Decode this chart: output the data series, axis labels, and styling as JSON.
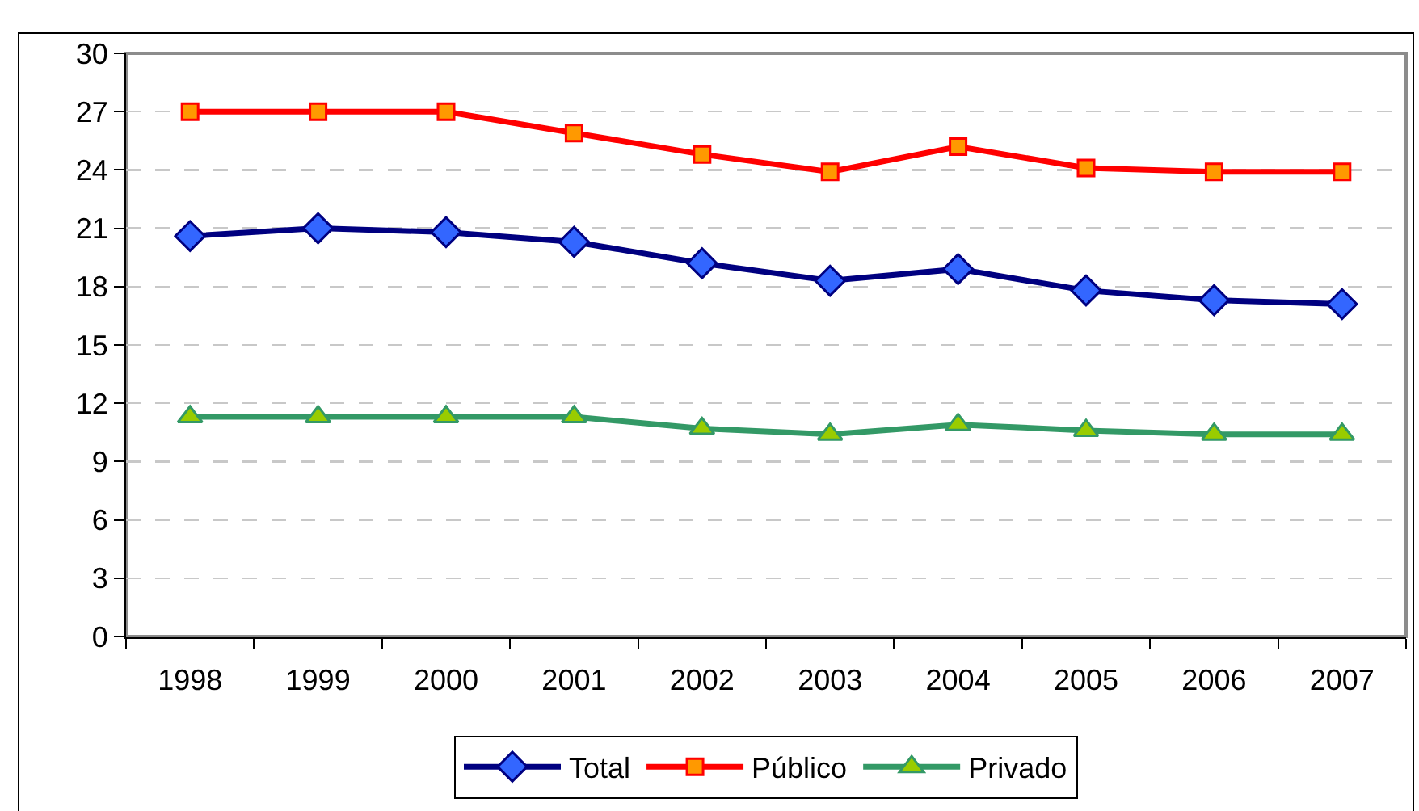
{
  "chart_data": {
    "type": "line",
    "categories": [
      "1998",
      "1999",
      "2000",
      "2001",
      "2002",
      "2003",
      "2004",
      "2005",
      "2006",
      "2007"
    ],
    "series": [
      {
        "name": "Total",
        "color": "#000080",
        "marker": "diamond",
        "colors": [
          "#3366ff",
          "#3366ff",
          "#3366ff",
          "#3366ff",
          "#3366ff",
          "#3366ff",
          "#3366ff",
          "#3366ff",
          "#3366ff",
          "#3366ff"
        ],
        "values": [
          20.6,
          21.0,
          20.8,
          20.3,
          19.2,
          18.3,
          18.9,
          17.8,
          17.3,
          17.1
        ]
      },
      {
        "name": "Público",
        "color": "#ff0000",
        "marker": "square",
        "colors": [
          "#ff9900",
          "#ff9900",
          "#ff9900",
          "#ff9900",
          "#ff9900",
          "#ff9900",
          "#ff9900",
          "#ff9900",
          "#ff9900",
          "#ff9900"
        ],
        "values": [
          27,
          27,
          27,
          25.9,
          24.8,
          23.9,
          25.2,
          24.1,
          23.9,
          23.9
        ]
      },
      {
        "name": "Privado",
        "color": "#339966",
        "marker": "triangle",
        "colors": [
          "#99cc00",
          "#99cc00",
          "#99cc00",
          "#99cc00",
          "#99cc00",
          "#99cc00",
          "#99cc00",
          "#99cc00",
          "#99cc00",
          "#99cc00"
        ],
        "values": [
          11.3,
          11.3,
          11.3,
          11.3,
          10.7,
          10.4,
          10.9,
          10.6,
          10.4,
          10.4
        ]
      }
    ],
    "ylim": [
      0,
      30
    ],
    "yticks": [
      0,
      3,
      6,
      9,
      12,
      15,
      18,
      21,
      24,
      27,
      30
    ],
    "grid": "y",
    "legend": "bottom",
    "line_style": "solid"
  }
}
